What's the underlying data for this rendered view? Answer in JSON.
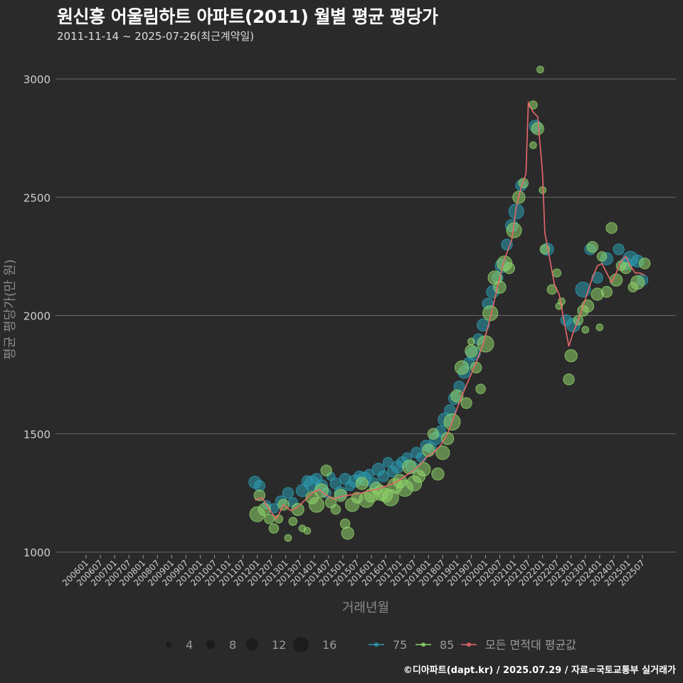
{
  "title": "원신흥 어울림하트 아파트(2011) 월별 평균 평당가",
  "subtitle": "2011-11-14 ~ 2025-07-26(최근계약일)",
  "caption": "©디아파트(dapt.kr) / 2025.07.29 / 자료=국토교통부 실거래가",
  "colors": {
    "background": "#2b2a2b",
    "grid": "#6a6a6a",
    "series_75": "#2a9bb0",
    "series_85": "#8fd46a",
    "mean_line": "#e8686a",
    "axis_text": "#cfcfcf"
  },
  "chart_data": {
    "type": "scatter",
    "xlabel": "거래년월",
    "ylabel": "평균 평당가(만 원)",
    "ylim": [
      1000,
      3000
    ],
    "yticks": [
      1000,
      1500,
      2000,
      2500,
      3000
    ],
    "xticks": [
      "200601",
      "200607",
      "200701",
      "200707",
      "200801",
      "200807",
      "200901",
      "200907",
      "201001",
      "201007",
      "201101",
      "201107",
      "201201",
      "201207",
      "201301",
      "201307",
      "201401",
      "201407",
      "201501",
      "201507",
      "201601",
      "201607",
      "201701",
      "201707",
      "201801",
      "201807",
      "201901",
      "201907",
      "202001",
      "202007",
      "202101",
      "202107",
      "202201",
      "202207",
      "202301",
      "202307",
      "202401",
      "202407",
      "202501",
      "202507"
    ],
    "size_legend": {
      "values": [
        4,
        8,
        12,
        16
      ]
    },
    "legend": [
      {
        "key": "75",
        "label": "75",
        "kind": "series_75"
      },
      {
        "key": "85",
        "label": "85",
        "kind": "series_85"
      },
      {
        "key": "mean",
        "label": "모든 면적대 평균값",
        "kind": "mean_line"
      }
    ],
    "mean_line": [
      [
        2011.92,
        1220
      ],
      [
        2012.17,
        1230
      ],
      [
        2012.42,
        1180
      ],
      [
        2012.67,
        1140
      ],
      [
        2012.92,
        1200
      ],
      [
        2013.17,
        1175
      ],
      [
        2013.42,
        1190
      ],
      [
        2013.67,
        1220
      ],
      [
        2013.92,
        1250
      ],
      [
        2014.17,
        1265
      ],
      [
        2014.42,
        1240
      ],
      [
        2014.67,
        1225
      ],
      [
        2014.92,
        1235
      ],
      [
        2015.17,
        1240
      ],
      [
        2015.42,
        1245
      ],
      [
        2015.67,
        1250
      ],
      [
        2015.92,
        1260
      ],
      [
        2016.17,
        1265
      ],
      [
        2016.42,
        1275
      ],
      [
        2016.67,
        1285
      ],
      [
        2016.92,
        1300
      ],
      [
        2017.17,
        1320
      ],
      [
        2017.42,
        1340
      ],
      [
        2017.67,
        1365
      ],
      [
        2017.92,
        1400
      ],
      [
        2018.17,
        1420
      ],
      [
        2018.42,
        1450
      ],
      [
        2018.67,
        1500
      ],
      [
        2018.92,
        1580
      ],
      [
        2019.17,
        1660
      ],
      [
        2019.42,
        1730
      ],
      [
        2019.67,
        1800
      ],
      [
        2019.92,
        1880
      ],
      [
        2020.17,
        1990
      ],
      [
        2020.42,
        2120
      ],
      [
        2020.67,
        2240
      ],
      [
        2020.92,
        2320
      ],
      [
        2021.08,
        2460
      ],
      [
        2021.25,
        2540
      ],
      [
        2021.42,
        2600
      ],
      [
        2021.5,
        2900
      ],
      [
        2021.67,
        2860
      ],
      [
        2021.83,
        2840
      ],
      [
        2022.0,
        2600
      ],
      [
        2022.08,
        2350
      ],
      [
        2022.25,
        2240
      ],
      [
        2022.42,
        2130
      ],
      [
        2022.58,
        2090
      ],
      [
        2022.75,
        1980
      ],
      [
        2022.92,
        1870
      ],
      [
        2023.08,
        1930
      ],
      [
        2023.25,
        1980
      ],
      [
        2023.42,
        2040
      ],
      [
        2023.58,
        2100
      ],
      [
        2023.75,
        2160
      ],
      [
        2023.92,
        2210
      ],
      [
        2024.08,
        2220
      ],
      [
        2024.25,
        2180
      ],
      [
        2024.42,
        2140
      ],
      [
        2024.58,
        2180
      ],
      [
        2024.75,
        2230
      ],
      [
        2024.92,
        2250
      ],
      [
        2025.08,
        2210
      ],
      [
        2025.25,
        2180
      ],
      [
        2025.42,
        2180
      ],
      [
        2025.58,
        2170
      ]
    ],
    "points_75": [
      [
        2011.92,
        1295,
        7
      ],
      [
        2012.08,
        1280,
        6
      ],
      [
        2012.33,
        1200,
        4
      ],
      [
        2012.58,
        1185,
        5
      ],
      [
        2012.83,
        1215,
        6
      ],
      [
        2013.08,
        1250,
        6
      ],
      [
        2013.25,
        1210,
        5
      ],
      [
        2013.58,
        1260,
        7
      ],
      [
        2013.75,
        1300,
        6
      ],
      [
        2013.92,
        1290,
        9
      ],
      [
        2014.08,
        1310,
        6
      ],
      [
        2014.25,
        1280,
        7
      ],
      [
        2014.42,
        1250,
        5
      ],
      [
        2014.58,
        1320,
        4
      ],
      [
        2014.75,
        1290,
        6
      ],
      [
        2014.92,
        1250,
        7
      ],
      [
        2015.08,
        1310,
        6
      ],
      [
        2015.25,
        1280,
        5
      ],
      [
        2015.42,
        1300,
        7
      ],
      [
        2015.58,
        1320,
        6
      ],
      [
        2015.75,
        1310,
        8
      ],
      [
        2015.92,
        1330,
        5
      ],
      [
        2016.08,
        1290,
        6
      ],
      [
        2016.25,
        1350,
        7
      ],
      [
        2016.42,
        1320,
        6
      ],
      [
        2016.58,
        1380,
        5
      ],
      [
        2016.75,
        1340,
        6
      ],
      [
        2016.92,
        1360,
        7
      ],
      [
        2017.08,
        1380,
        6
      ],
      [
        2017.25,
        1400,
        5
      ],
      [
        2017.42,
        1360,
        7
      ],
      [
        2017.58,
        1420,
        6
      ],
      [
        2017.75,
        1400,
        5
      ],
      [
        2017.92,
        1450,
        6
      ],
      [
        2018.08,
        1440,
        6
      ],
      [
        2018.25,
        1480,
        7
      ],
      [
        2018.42,
        1510,
        6
      ],
      [
        2018.58,
        1560,
        8
      ],
      [
        2018.75,
        1600,
        6
      ],
      [
        2018.92,
        1650,
        7
      ],
      [
        2019.08,
        1700,
        6
      ],
      [
        2019.25,
        1760,
        7
      ],
      [
        2019.42,
        1800,
        6
      ],
      [
        2019.58,
        1840,
        8
      ],
      [
        2019.75,
        1900,
        6
      ],
      [
        2019.92,
        1960,
        7
      ],
      [
        2020.08,
        2050,
        6
      ],
      [
        2020.25,
        2100,
        7
      ],
      [
        2020.42,
        2160,
        6
      ],
      [
        2020.58,
        2210,
        8
      ],
      [
        2020.75,
        2300,
        6
      ],
      [
        2020.92,
        2380,
        7
      ],
      [
        2021.08,
        2440,
        9
      ],
      [
        2021.25,
        2550,
        6
      ],
      [
        2021.75,
        2800,
        7
      ],
      [
        2022.17,
        2280,
        7
      ],
      [
        2022.83,
        1980,
        6
      ],
      [
        2023.08,
        1960,
        8
      ],
      [
        2023.42,
        2110,
        9
      ],
      [
        2023.67,
        2280,
        6
      ],
      [
        2023.92,
        2160,
        6
      ],
      [
        2024.25,
        2240,
        7
      ],
      [
        2024.67,
        2280,
        6
      ],
      [
        2024.92,
        2220,
        7
      ],
      [
        2025.08,
        2240,
        9
      ],
      [
        2025.33,
        2230,
        7
      ],
      [
        2025.5,
        2150,
        6
      ]
    ],
    "points_85": [
      [
        2012.0,
        1160,
        9
      ],
      [
        2012.08,
        1240,
        6
      ],
      [
        2012.25,
        1180,
        7
      ],
      [
        2012.42,
        1140,
        5
      ],
      [
        2012.58,
        1100,
        5
      ],
      [
        2012.75,
        1140,
        4
      ],
      [
        2012.92,
        1200,
        6
      ],
      [
        2013.08,
        1060,
        3
      ],
      [
        2013.25,
        1130,
        4
      ],
      [
        2013.42,
        1180,
        7
      ],
      [
        2013.58,
        1100,
        3
      ],
      [
        2013.75,
        1090,
        3
      ],
      [
        2013.92,
        1230,
        7
      ],
      [
        2014.08,
        1200,
        9
      ],
      [
        2014.25,
        1260,
        8
      ],
      [
        2014.42,
        1345,
        6
      ],
      [
        2014.58,
        1210,
        6
      ],
      [
        2014.75,
        1180,
        5
      ],
      [
        2014.92,
        1240,
        7
      ],
      [
        2015.08,
        1120,
        5
      ],
      [
        2015.17,
        1080,
        7
      ],
      [
        2015.33,
        1200,
        8
      ],
      [
        2015.5,
        1230,
        6
      ],
      [
        2015.67,
        1290,
        7
      ],
      [
        2015.83,
        1220,
        9
      ],
      [
        2016.0,
        1240,
        8
      ],
      [
        2016.17,
        1270,
        7
      ],
      [
        2016.33,
        1250,
        9
      ],
      [
        2016.5,
        1240,
        8
      ],
      [
        2016.67,
        1230,
        10
      ],
      [
        2016.83,
        1280,
        9
      ],
      [
        2017.0,
        1300,
        8
      ],
      [
        2017.17,
        1270,
        10
      ],
      [
        2017.33,
        1360,
        8
      ],
      [
        2017.5,
        1290,
        9
      ],
      [
        2017.67,
        1320,
        7
      ],
      [
        2017.83,
        1350,
        8
      ],
      [
        2018.0,
        1430,
        7
      ],
      [
        2018.17,
        1500,
        6
      ],
      [
        2018.33,
        1330,
        7
      ],
      [
        2018.5,
        1420,
        8
      ],
      [
        2018.67,
        1480,
        7
      ],
      [
        2018.83,
        1550,
        10
      ],
      [
        2019.0,
        1660,
        7
      ],
      [
        2019.17,
        1780,
        8
      ],
      [
        2019.33,
        1630,
        6
      ],
      [
        2019.5,
        1850,
        7
      ],
      [
        2019.67,
        1780,
        6
      ],
      [
        2019.83,
        1690,
        5
      ],
      [
        2020.0,
        1880,
        10
      ],
      [
        2020.17,
        2010,
        9
      ],
      [
        2020.33,
        2160,
        8
      ],
      [
        2020.5,
        2120,
        7
      ],
      [
        2020.67,
        2220,
        9
      ],
      [
        2020.83,
        2200,
        6
      ],
      [
        2021.0,
        2360,
        9
      ],
      [
        2021.17,
        2500,
        7
      ],
      [
        2021.33,
        2560,
        5
      ],
      [
        2021.67,
        2890,
        4
      ],
      [
        2021.83,
        2790,
        7
      ],
      [
        2022.0,
        2530,
        3
      ],
      [
        2022.08,
        2280,
        5
      ],
      [
        2022.33,
        2110,
        5
      ],
      [
        2022.5,
        2180,
        4
      ],
      [
        2022.67,
        2060,
        3
      ],
      [
        2022.92,
        1730,
        6
      ],
      [
        2023.0,
        1830,
        7
      ],
      [
        2023.25,
        1980,
        5
      ],
      [
        2023.42,
        2020,
        6
      ],
      [
        2023.58,
        2040,
        7
      ],
      [
        2023.75,
        2290,
        6
      ],
      [
        2023.92,
        2090,
        7
      ],
      [
        2024.08,
        2250,
        5
      ],
      [
        2024.25,
        2100,
        6
      ],
      [
        2024.42,
        2370,
        6
      ],
      [
        2024.58,
        2150,
        7
      ],
      [
        2024.75,
        2210,
        5
      ],
      [
        2024.92,
        2200,
        6
      ],
      [
        2025.17,
        2120,
        5
      ],
      [
        2025.33,
        2140,
        8
      ],
      [
        2025.58,
        2220,
        6
      ],
      [
        2021.92,
        3040,
        3
      ],
      [
        2021.67,
        2720,
        3
      ],
      [
        2022.58,
        2040,
        3
      ],
      [
        2019.5,
        1890,
        3
      ],
      [
        2023.5,
        1940,
        3
      ],
      [
        2024.0,
        1950,
        3
      ]
    ]
  }
}
